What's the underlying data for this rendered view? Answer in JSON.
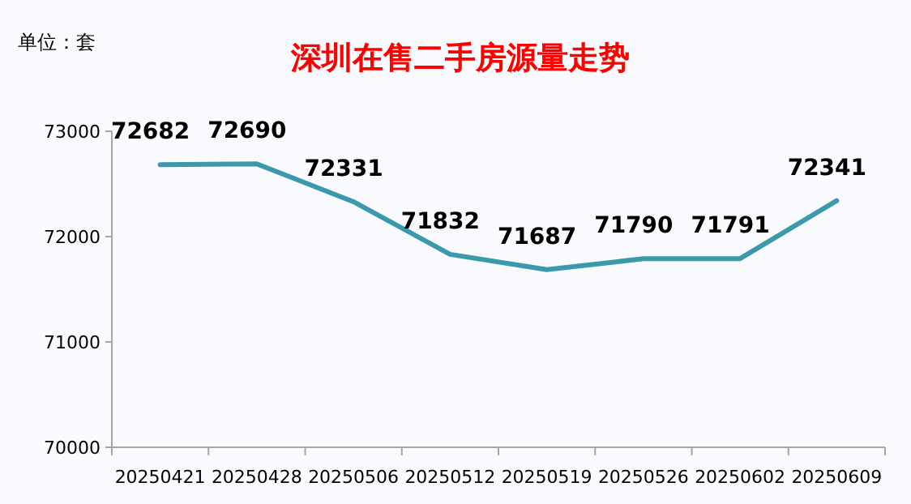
{
  "chart_data": {
    "type": "line",
    "title": "深圳在售二手房源量走势",
    "annotations": [
      "单位：套"
    ],
    "categories": [
      "20250421",
      "20250428",
      "20250506",
      "20250512",
      "20250519",
      "20250526",
      "20250602",
      "20250609"
    ],
    "values": [
      72682,
      72690,
      72331,
      71832,
      71687,
      71790,
      71791,
      72341
    ],
    "color": "#3a9aac",
    "ylim": [
      70000,
      73000
    ],
    "yticks": [
      70000,
      71000,
      72000,
      73000
    ],
    "data_labels": true,
    "grid": false,
    "marker": "none",
    "line_style": "solid"
  }
}
